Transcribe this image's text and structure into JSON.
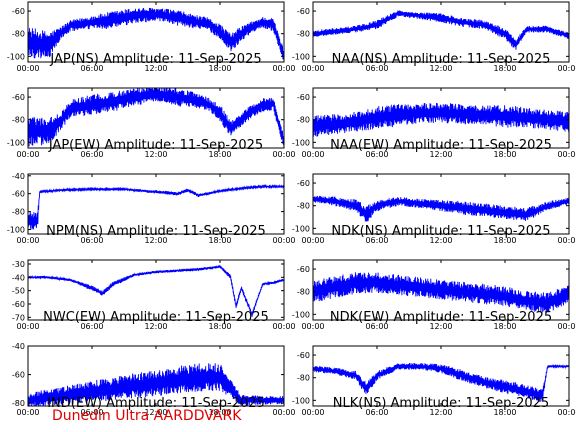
{
  "footer": "Dunedin Ultra AARDDVARK",
  "colors": {
    "trace": "#0000ff",
    "axes": "#000000",
    "footer": "#e00000"
  },
  "chart_data": [
    {
      "type": "line",
      "title": "JAP(NS) Amplitude: 11-Sep-2025",
      "xticks": [
        "00:00",
        "06:00",
        "12:00",
        "18:00",
        "00:00"
      ],
      "yticks": [
        -100,
        -80,
        -60
      ],
      "ylim": [
        -105,
        -52
      ],
      "x": [
        0,
        2,
        3,
        4,
        6,
        8,
        10,
        12,
        14,
        16,
        17,
        18,
        19,
        20,
        21,
        22,
        23,
        24
      ],
      "y": [
        -88,
        -90,
        -80,
        -73,
        -70,
        -68,
        -64,
        -63,
        -66,
        -70,
        -72,
        -78,
        -88,
        -80,
        -74,
        -70,
        -72,
        -100
      ],
      "noise": [
        14,
        12,
        6,
        5,
        6,
        8,
        7,
        6,
        7,
        6,
        6,
        7,
        8,
        7,
        5,
        5,
        6,
        6
      ]
    },
    {
      "type": "line",
      "title": "NAA(NS) Amplitude: 11-Sep-2025",
      "xticks": [
        "00:00",
        "06:00",
        "12:00",
        "18:00",
        "00:00"
      ],
      "yticks": [
        -100,
        -80,
        -60
      ],
      "ylim": [
        -105,
        -52
      ],
      "x": [
        0,
        2,
        4,
        6,
        8,
        10,
        12,
        14,
        16,
        18,
        19,
        20,
        22,
        24
      ],
      "y": [
        -80,
        -78,
        -76,
        -72,
        -62,
        -64,
        -66,
        -70,
        -72,
        -80,
        -90,
        -76,
        -76,
        -82
      ],
      "noise": [
        3,
        3,
        3,
        4,
        3,
        3,
        4,
        4,
        4,
        5,
        5,
        3,
        3,
        3
      ]
    },
    {
      "type": "line",
      "title": "JAP(EW) Amplitude: 11-Sep-2025",
      "xticks": [
        "00:00",
        "06:00",
        "12:00",
        "18:00",
        "00:00"
      ],
      "yticks": [
        -100,
        -80,
        -60
      ],
      "ylim": [
        -105,
        -52
      ],
      "x": [
        0,
        2,
        3,
        4,
        6,
        8,
        10,
        12,
        14,
        16,
        17,
        18,
        19,
        20,
        21,
        22,
        23,
        24
      ],
      "y": [
        -90,
        -90,
        -82,
        -70,
        -67,
        -64,
        -60,
        -57,
        -60,
        -63,
        -67,
        -74,
        -88,
        -80,
        -72,
        -67,
        -66,
        -100
      ],
      "noise": [
        14,
        12,
        8,
        8,
        9,
        9,
        8,
        7,
        8,
        7,
        6,
        8,
        7,
        6,
        6,
        6,
        6,
        6
      ]
    },
    {
      "type": "line",
      "title": "NAA(EW) Amplitude: 11-Sep-2025",
      "xticks": [
        "00:00",
        "06:00",
        "12:00",
        "18:00",
        "00:00"
      ],
      "yticks": [
        -100,
        -80,
        -60
      ],
      "ylim": [
        -105,
        -52
      ],
      "x": [
        0,
        2,
        4,
        6,
        8,
        10,
        12,
        14,
        16,
        18,
        20,
        22,
        24
      ],
      "y": [
        -86,
        -84,
        -82,
        -78,
        -76,
        -74,
        -74,
        -75,
        -76,
        -77,
        -78,
        -80,
        -82
      ],
      "noise": [
        10,
        9,
        9,
        10,
        10,
        9,
        9,
        9,
        9,
        10,
        9,
        9,
        9
      ]
    },
    {
      "type": "line",
      "title": "NPM(NS) Amplitude: 11-Sep-2025",
      "xticks": [
        "00:00",
        "06:00",
        "12:00",
        "18:00",
        "00:00"
      ],
      "yticks": [
        -100,
        -80,
        -60,
        -40
      ],
      "ylim": [
        -105,
        -38
      ],
      "x": [
        0,
        0.9,
        1.1,
        3,
        6,
        9,
        12,
        14,
        15,
        16,
        18,
        20,
        22,
        24
      ],
      "y": [
        -90,
        -90,
        -58,
        -56,
        -55,
        -55,
        -58,
        -60,
        -56,
        -62,
        -57,
        -54,
        -52,
        -52
      ],
      "noise": [
        10,
        10,
        1,
        1,
        1,
        1,
        2,
        2,
        2,
        2,
        1,
        1,
        1,
        1
      ]
    },
    {
      "type": "line",
      "title": "NDK(NS) Amplitude: 11-Sep-2025",
      "xticks": [
        "00:00",
        "06:00",
        "12:00",
        "18:00",
        "00:00"
      ],
      "yticks": [
        -100,
        -80,
        -60
      ],
      "ylim": [
        -105,
        -52
      ],
      "x": [
        0,
        2,
        4,
        5,
        6,
        8,
        10,
        12,
        14,
        16,
        18,
        20,
        22,
        24
      ],
      "y": [
        -74,
        -76,
        -80,
        -88,
        -80,
        -76,
        -78,
        -80,
        -82,
        -84,
        -86,
        -88,
        -80,
        -76
      ],
      "noise": [
        3,
        4,
        6,
        8,
        5,
        4,
        4,
        5,
        6,
        6,
        6,
        6,
        4,
        3
      ]
    },
    {
      "type": "line",
      "title": "NWC(EW) Amplitude: 11-Sep-2025",
      "xticks": [
        "00:00",
        "06:00",
        "12:00",
        "18:00",
        "00:00"
      ],
      "yticks": [
        -70,
        -60,
        -50,
        -40,
        -30
      ],
      "ylim": [
        -72,
        -27
      ],
      "x": [
        0,
        2,
        4,
        6,
        7,
        8,
        10,
        12,
        14,
        16,
        18,
        19,
        19.5,
        20,
        21,
        22,
        23,
        24
      ],
      "y": [
        -40,
        -40,
        -42,
        -48,
        -52,
        -45,
        -38,
        -36,
        -35,
        -34,
        -32,
        -40,
        -62,
        -48,
        -68,
        -45,
        -44,
        -42
      ],
      "noise": [
        1,
        1,
        1,
        2,
        2,
        2,
        1,
        1,
        1,
        1,
        1,
        2,
        2,
        2,
        2,
        1,
        1,
        1
      ]
    },
    {
      "type": "line",
      "title": "NDK(EW) Amplitude: 11-Sep-2025",
      "xticks": [
        "00:00",
        "06:00",
        "12:00",
        "18:00",
        "00:00"
      ],
      "yticks": [
        -100,
        -80,
        -60
      ],
      "ylim": [
        -105,
        -52
      ],
      "x": [
        0,
        2,
        4,
        6,
        8,
        10,
        12,
        14,
        16,
        18,
        20,
        22,
        24
      ],
      "y": [
        -80,
        -76,
        -72,
        -72,
        -74,
        -76,
        -78,
        -80,
        -82,
        -84,
        -88,
        -90,
        -82
      ],
      "noise": [
        10,
        10,
        10,
        9,
        9,
        9,
        9,
        9,
        9,
        9,
        9,
        9,
        8
      ]
    },
    {
      "type": "line",
      "title": "IND(EW) Amplitude: 11-Sep-2025",
      "xticks": [
        "00:00",
        "06:00",
        "12:00",
        "18:00",
        "00:00"
      ],
      "yticks": [
        -80,
        -60,
        -40
      ],
      "ylim": [
        -82,
        -40
      ],
      "x": [
        0,
        2,
        4,
        6,
        8,
        10,
        12,
        14,
        16,
        18,
        20,
        22,
        24
      ],
      "y": [
        -78,
        -76,
        -74,
        -72,
        -70,
        -68,
        -66,
        -64,
        -62,
        -62,
        -78,
        -78,
        -78
      ],
      "noise": [
        5,
        6,
        7,
        8,
        8,
        9,
        9,
        10,
        10,
        10,
        4,
        3,
        3
      ]
    },
    {
      "type": "line",
      "title": "NLK(NS) Amplitude: 11-Sep-2025",
      "xticks": [
        "00:00",
        "06:00",
        "12:00",
        "18:00",
        "00:00"
      ],
      "yticks": [
        -100,
        -80,
        -60
      ],
      "ylim": [
        -105,
        -52
      ],
      "x": [
        0,
        2,
        4,
        5,
        6,
        8,
        10,
        12,
        14,
        16,
        18,
        20,
        21.5,
        22,
        24
      ],
      "y": [
        -72,
        -74,
        -78,
        -90,
        -78,
        -70,
        -70,
        -72,
        -78,
        -84,
        -88,
        -92,
        -96,
        -70,
        -70
      ],
      "noise": [
        3,
        3,
        4,
        6,
        4,
        3,
        3,
        4,
        5,
        5,
        6,
        6,
        6,
        1,
        1
      ]
    }
  ]
}
